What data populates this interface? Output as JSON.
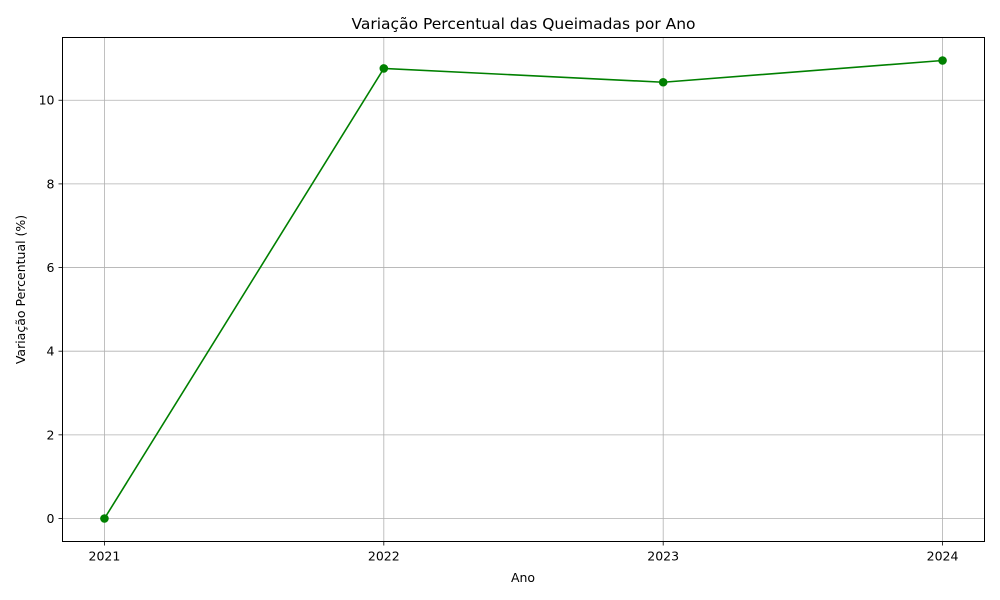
{
  "chart_data": {
    "type": "line",
    "title": "Variação Percentual das Queimadas por Ano",
    "xlabel": "Ano",
    "ylabel": "Variação Percentual (%)",
    "categories": [
      "2021",
      "2022",
      "2023",
      "2024"
    ],
    "y_ticks": [
      "0",
      "2",
      "4",
      "6",
      "8",
      "10"
    ],
    "ylim": [
      -0.55,
      11.5
    ],
    "grid": true,
    "series": [
      {
        "values": [
          0,
          10.76,
          10.43,
          10.95
        ],
        "color": "#008000",
        "marker": "circle"
      }
    ]
  }
}
